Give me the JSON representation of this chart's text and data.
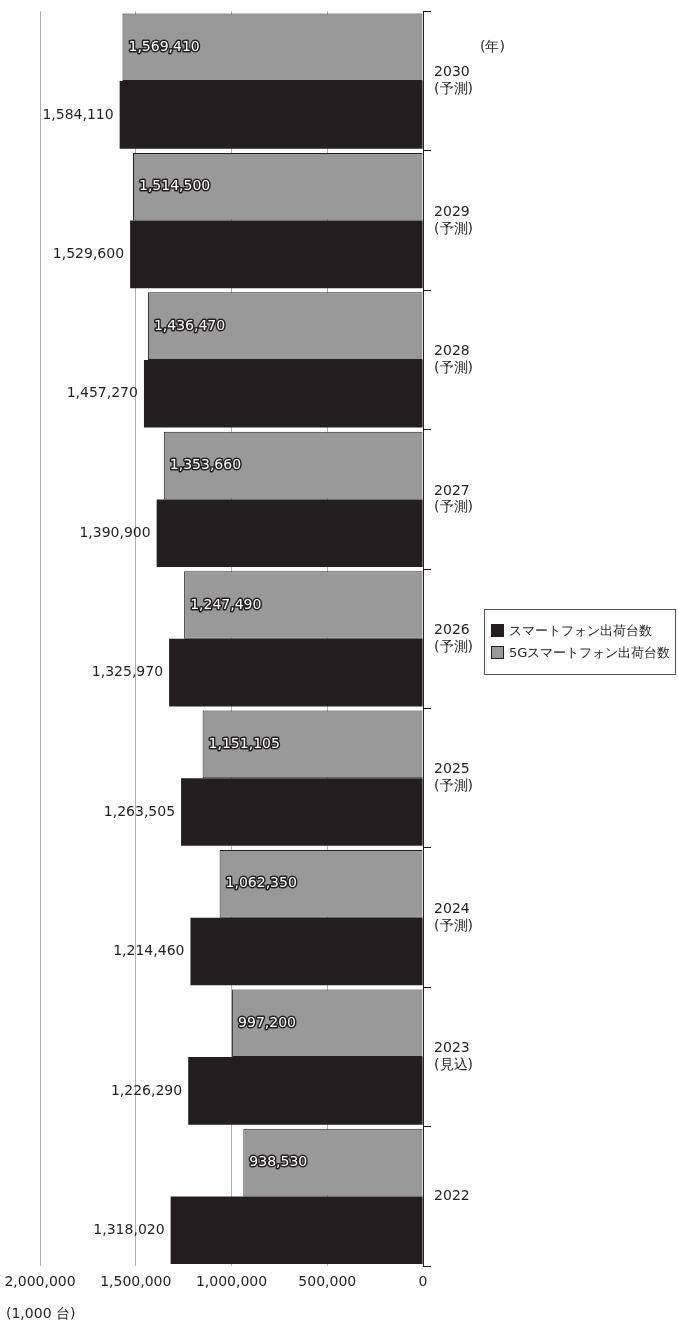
{
  "chart_data": {
    "type": "bar",
    "orientation": "horizontal",
    "xlabel": "(1,000 台)",
    "ylabel": "(年)",
    "categories": [
      "2030\n(予測)",
      "2029\n(予測)",
      "2028\n(予測)",
      "2027\n(予測)",
      "2026\n(予測)",
      "2025\n(予測)",
      "2024\n(予測)",
      "2023\n(見込)",
      "2022"
    ],
    "series": [
      {
        "name": "スマートフォン出荷台数",
        "color": "#231f20",
        "values": [
          1584110,
          1529600,
          1457270,
          1390900,
          1325970,
          1263505,
          1214460,
          1226290,
          1318020
        ],
        "value_labels": [
          "1,584,110",
          "1,529,600",
          "1,457,270",
          "1,390,900",
          "1,325,970",
          "1,263,505",
          "1,214,460",
          "1,226,290",
          "1,318,020"
        ]
      },
      {
        "name": "5Gスマートフォン出荷台数",
        "color": "#999999",
        "values": [
          1569410,
          1514500,
          1436470,
          1353660,
          1247490,
          1151105,
          1062350,
          997200,
          938530
        ],
        "value_labels": [
          "1,569,410",
          "1,514,500",
          "1,436,470",
          "1,353,660",
          "1,247,490",
          "1,151,105",
          "1,062,350",
          "997,200",
          "938,530"
        ]
      }
    ],
    "xlim": [
      2000000,
      0
    ],
    "xticks": [
      0,
      {
        "value": 500000,
        "label": "500,000"
      },
      {
        "value": 1000000,
        "label": "1,000,000"
      },
      {
        "value": 1500000,
        "label": "1,500,000"
      },
      {
        "value": 2000000,
        "label": "2,000,000"
      }
    ],
    "grid": "x",
    "legend": "right"
  }
}
